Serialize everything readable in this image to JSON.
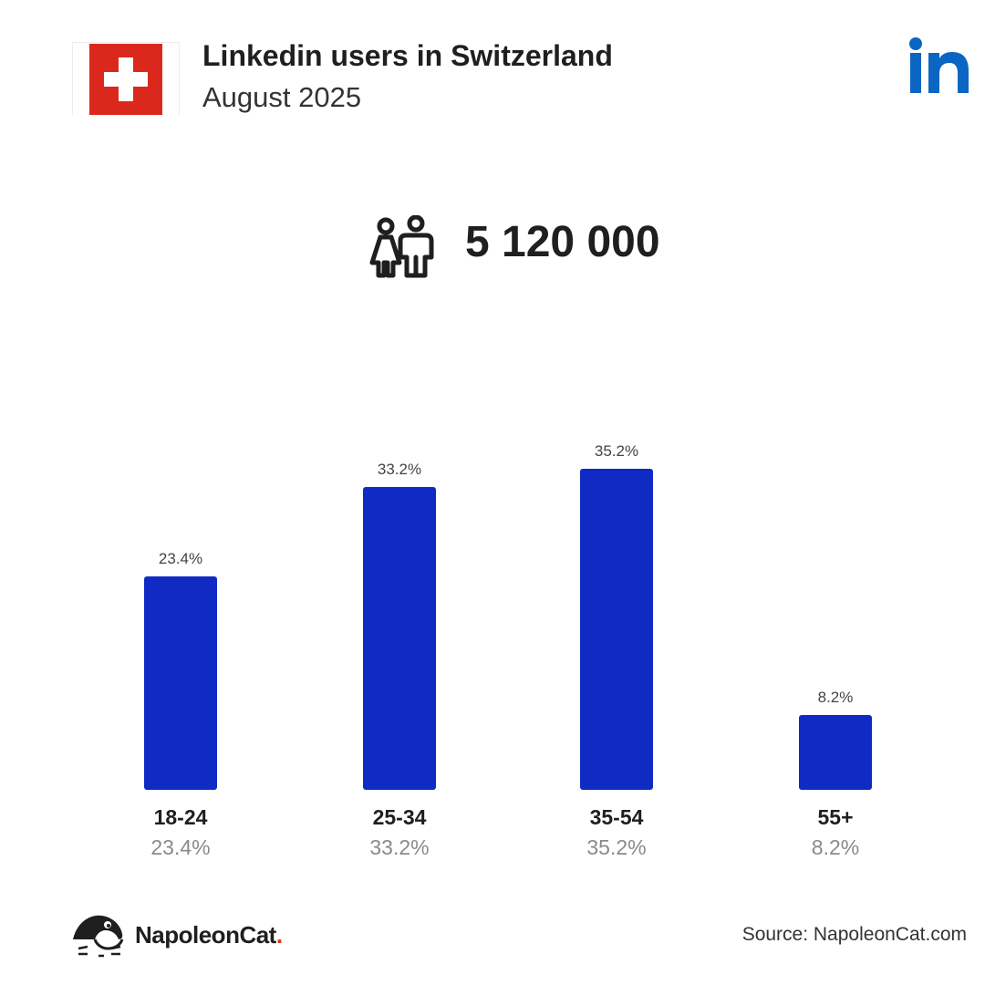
{
  "header": {
    "title": "Linkedin users in Switzerland",
    "subtitle": "August 2025",
    "flag_icon": "swiss-flag-icon",
    "platform_icon": "linkedin-logo-icon"
  },
  "summary": {
    "total_users": "5 120 000",
    "icon": "users-icon"
  },
  "chart_data": {
    "type": "bar",
    "categories": [
      "18-24",
      "25-34",
      "35-54",
      "55+"
    ],
    "values": [
      23.4,
      33.2,
      35.2,
      8.2
    ],
    "data_labels": [
      "23.4%",
      "33.2%",
      "35.2%",
      "8.2%"
    ],
    "bar_color": "#0f2bc4",
    "ylim": [
      0,
      35.2
    ],
    "grid": false
  },
  "footer": {
    "brand_name": "NapoleonCat",
    "brand_dot": ".",
    "source": "Source: NapoleonCat.com"
  },
  "colors": {
    "flag_red": "#da291c",
    "linkedin_blue": "#0a66c2",
    "bar": "#0f2bc4"
  }
}
